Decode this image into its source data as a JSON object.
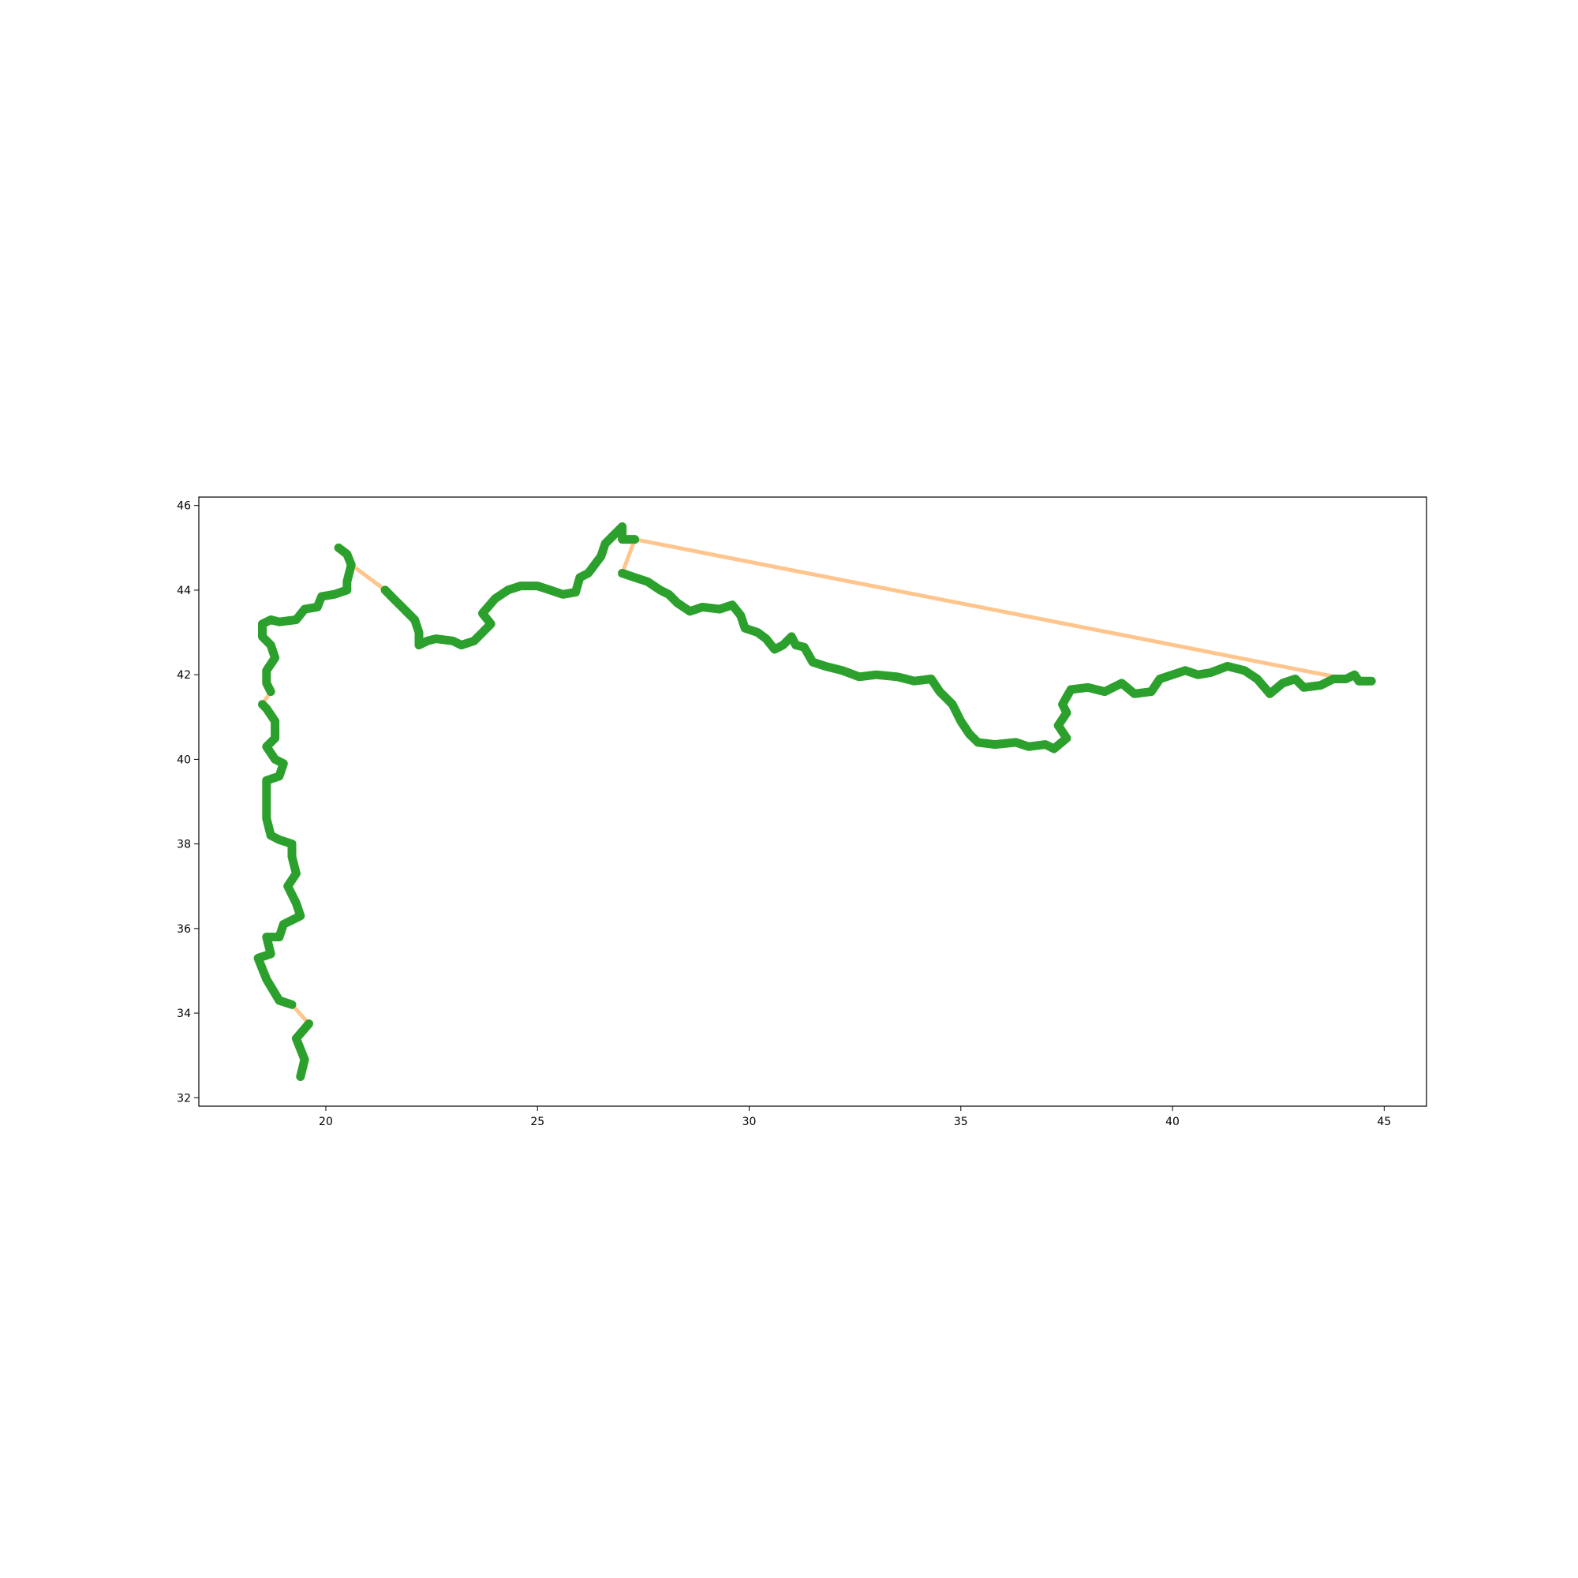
{
  "chart_data": {
    "type": "line",
    "title": "",
    "xlabel": "",
    "ylabel": "",
    "xlim": [
      17,
      46
    ],
    "ylim": [
      31.8,
      46.2
    ],
    "xticks": [
      20,
      25,
      30,
      35,
      40,
      45
    ],
    "yticks": [
      32,
      34,
      36,
      38,
      40,
      42,
      44,
      46
    ],
    "grid": false,
    "legend": "none",
    "series": [
      {
        "color": "#2ca02c",
        "style": "thick-markers",
        "segments": [
          [
            [
              19.4,
              32.5
            ],
            [
              19.5,
              32.9
            ],
            [
              19.3,
              33.4
            ],
            [
              19.6,
              33.75
            ]
          ],
          [
            [
              19.2,
              34.2
            ],
            [
              18.9,
              34.3
            ],
            [
              18.6,
              34.8
            ],
            [
              18.4,
              35.3
            ],
            [
              18.7,
              35.4
            ],
            [
              18.6,
              35.8
            ],
            [
              18.9,
              35.8
            ],
            [
              19.0,
              36.1
            ],
            [
              19.4,
              36.3
            ],
            [
              19.3,
              36.6
            ],
            [
              19.1,
              37.0
            ],
            [
              19.3,
              37.3
            ],
            [
              19.2,
              37.7
            ],
            [
              19.2,
              38.0
            ],
            [
              18.9,
              38.1
            ],
            [
              18.7,
              38.2
            ],
            [
              18.6,
              38.6
            ],
            [
              18.6,
              39.0
            ],
            [
              18.6,
              39.5
            ],
            [
              18.9,
              39.6
            ],
            [
              19.0,
              39.9
            ],
            [
              18.8,
              40.0
            ],
            [
              18.6,
              40.3
            ],
            [
              18.8,
              40.5
            ],
            [
              18.8,
              40.9
            ],
            [
              18.6,
              41.2
            ],
            [
              18.5,
              41.3
            ]
          ],
          [
            [
              18.7,
              41.6
            ],
            [
              18.6,
              41.8
            ],
            [
              18.6,
              42.1
            ],
            [
              18.8,
              42.4
            ],
            [
              18.7,
              42.7
            ],
            [
              18.5,
              42.9
            ],
            [
              18.5,
              43.2
            ],
            [
              18.7,
              43.3
            ],
            [
              18.9,
              43.25
            ],
            [
              19.3,
              43.3
            ],
            [
              19.5,
              43.55
            ],
            [
              19.8,
              43.6
            ],
            [
              19.9,
              43.85
            ],
            [
              20.2,
              43.9
            ],
            [
              20.5,
              44.0
            ],
            [
              20.5,
              44.2
            ],
            [
              20.6,
              44.6
            ],
            [
              20.5,
              44.85
            ],
            [
              20.3,
              45.0
            ]
          ],
          [
            [
              21.4,
              44.0
            ],
            [
              21.6,
              43.8
            ],
            [
              21.9,
              43.5
            ],
            [
              22.1,
              43.3
            ],
            [
              22.2,
              43.0
            ],
            [
              22.2,
              42.7
            ],
            [
              22.4,
              42.8
            ],
            [
              22.6,
              42.85
            ],
            [
              23.0,
              42.8
            ],
            [
              23.2,
              42.7
            ],
            [
              23.5,
              42.8
            ],
            [
              23.7,
              43.0
            ],
            [
              23.9,
              43.2
            ],
            [
              23.7,
              43.45
            ],
            [
              24.0,
              43.8
            ],
            [
              24.3,
              44.0
            ],
            [
              24.6,
              44.1
            ],
            [
              25.0,
              44.1
            ],
            [
              25.3,
              44.0
            ],
            [
              25.6,
              43.9
            ],
            [
              25.9,
              43.95
            ],
            [
              26.0,
              44.3
            ],
            [
              26.2,
              44.4
            ],
            [
              26.5,
              44.8
            ],
            [
              26.6,
              45.1
            ],
            [
              26.8,
              45.3
            ],
            [
              27.0,
              45.5
            ],
            [
              27.0,
              45.2
            ],
            [
              27.3,
              45.2
            ]
          ],
          [
            [
              27.0,
              44.4
            ],
            [
              27.3,
              44.3
            ],
            [
              27.6,
              44.2
            ],
            [
              27.9,
              44.0
            ],
            [
              28.1,
              43.9
            ],
            [
              28.3,
              43.7
            ],
            [
              28.6,
              43.5
            ],
            [
              28.9,
              43.6
            ],
            [
              29.3,
              43.55
            ],
            [
              29.6,
              43.65
            ],
            [
              29.8,
              43.4
            ],
            [
              29.9,
              43.1
            ],
            [
              30.2,
              43.0
            ],
            [
              30.4,
              42.85
            ],
            [
              30.6,
              42.6
            ],
            [
              30.8,
              42.7
            ],
            [
              31.0,
              42.9
            ],
            [
              31.1,
              42.7
            ],
            [
              31.3,
              42.65
            ],
            [
              31.5,
              42.3
            ],
            [
              31.8,
              42.2
            ],
            [
              32.2,
              42.1
            ],
            [
              32.6,
              41.95
            ],
            [
              33.0,
              42.0
            ],
            [
              33.5,
              41.95
            ],
            [
              33.9,
              41.85
            ],
            [
              34.3,
              41.9
            ],
            [
              34.5,
              41.6
            ],
            [
              34.8,
              41.3
            ],
            [
              35.0,
              40.9
            ],
            [
              35.2,
              40.6
            ],
            [
              35.4,
              40.4
            ],
            [
              35.8,
              40.35
            ],
            [
              36.3,
              40.4
            ],
            [
              36.6,
              40.3
            ],
            [
              37.0,
              40.35
            ],
            [
              37.2,
              40.25
            ],
            [
              37.5,
              40.5
            ],
            [
              37.3,
              40.8
            ],
            [
              37.5,
              41.1
            ],
            [
              37.4,
              41.3
            ],
            [
              37.6,
              41.65
            ],
            [
              38.0,
              41.7
            ],
            [
              38.4,
              41.6
            ],
            [
              38.8,
              41.8
            ],
            [
              39.1,
              41.55
            ],
            [
              39.5,
              41.6
            ],
            [
              39.7,
              41.9
            ],
            [
              40.0,
              42.0
            ],
            [
              40.3,
              42.1
            ],
            [
              40.6,
              42.0
            ],
            [
              40.9,
              42.05
            ],
            [
              41.3,
              42.2
            ],
            [
              41.7,
              42.1
            ],
            [
              42.0,
              41.9
            ],
            [
              42.3,
              41.55
            ],
            [
              42.6,
              41.8
            ],
            [
              42.9,
              41.9
            ],
            [
              43.1,
              41.7
            ],
            [
              43.5,
              41.75
            ],
            [
              43.8,
              41.9
            ],
            [
              44.1,
              41.9
            ],
            [
              44.3,
              42.0
            ],
            [
              44.4,
              41.85
            ],
            [
              44.7,
              41.85
            ]
          ]
        ]
      },
      {
        "color": "#ffbb78",
        "style": "line",
        "segments": [
          [
            [
              19.2,
              34.2
            ],
            [
              19.6,
              33.75
            ]
          ],
          [
            [
              18.5,
              41.3
            ],
            [
              18.7,
              41.6
            ]
          ],
          [
            [
              18.5,
              43.2
            ],
            [
              18.9,
              43.25
            ]
          ],
          [
            [
              20.6,
              44.6
            ],
            [
              21.4,
              44.0
            ]
          ],
          [
            [
              27.3,
              45.2
            ],
            [
              44.1,
              41.9
            ]
          ],
          [
            [
              27.3,
              45.2
            ],
            [
              27.0,
              44.4
            ]
          ]
        ]
      }
    ]
  }
}
